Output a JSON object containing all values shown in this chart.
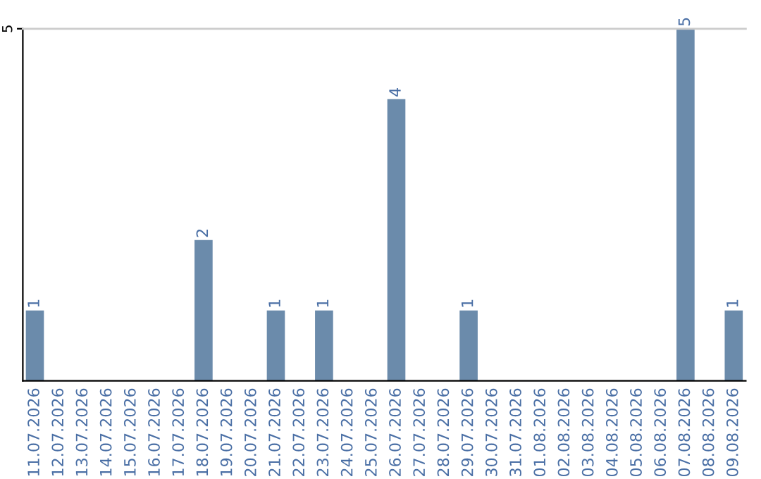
{
  "chart_data": {
    "type": "bar",
    "categories": [
      "11.07.2026",
      "12.07.2026",
      "13.07.2026",
      "14.07.2026",
      "15.07.2026",
      "16.07.2026",
      "17.07.2026",
      "18.07.2026",
      "19.07.2026",
      "20.07.2026",
      "21.07.2026",
      "22.07.2026",
      "23.07.2026",
      "24.07.2026",
      "25.07.2026",
      "26.07.2026",
      "27.07.2026",
      "28.07.2026",
      "29.07.2026",
      "30.07.2026",
      "31.07.2026",
      "01.08.2026",
      "02.08.2026",
      "03.08.2026",
      "04.08.2026",
      "05.08.2026",
      "06.08.2026",
      "07.08.2026",
      "08.08.2026",
      "09.08.2026"
    ],
    "values": [
      1,
      0,
      0,
      0,
      0,
      0,
      0,
      2,
      0,
      0,
      1,
      0,
      1,
      0,
      0,
      4,
      0,
      0,
      1,
      0,
      0,
      0,
      0,
      0,
      0,
      0,
      0,
      5,
      0,
      1
    ],
    "value_labels": [
      "1",
      null,
      null,
      null,
      null,
      null,
      null,
      "2",
      null,
      null,
      "1",
      null,
      "1",
      null,
      null,
      "4",
      null,
      null,
      "1",
      null,
      null,
      null,
      null,
      null,
      null,
      null,
      null,
      "5",
      null,
      "1"
    ],
    "color": "#6b8bab",
    "ylim": [
      0,
      5
    ],
    "yticks": [
      5
    ]
  }
}
